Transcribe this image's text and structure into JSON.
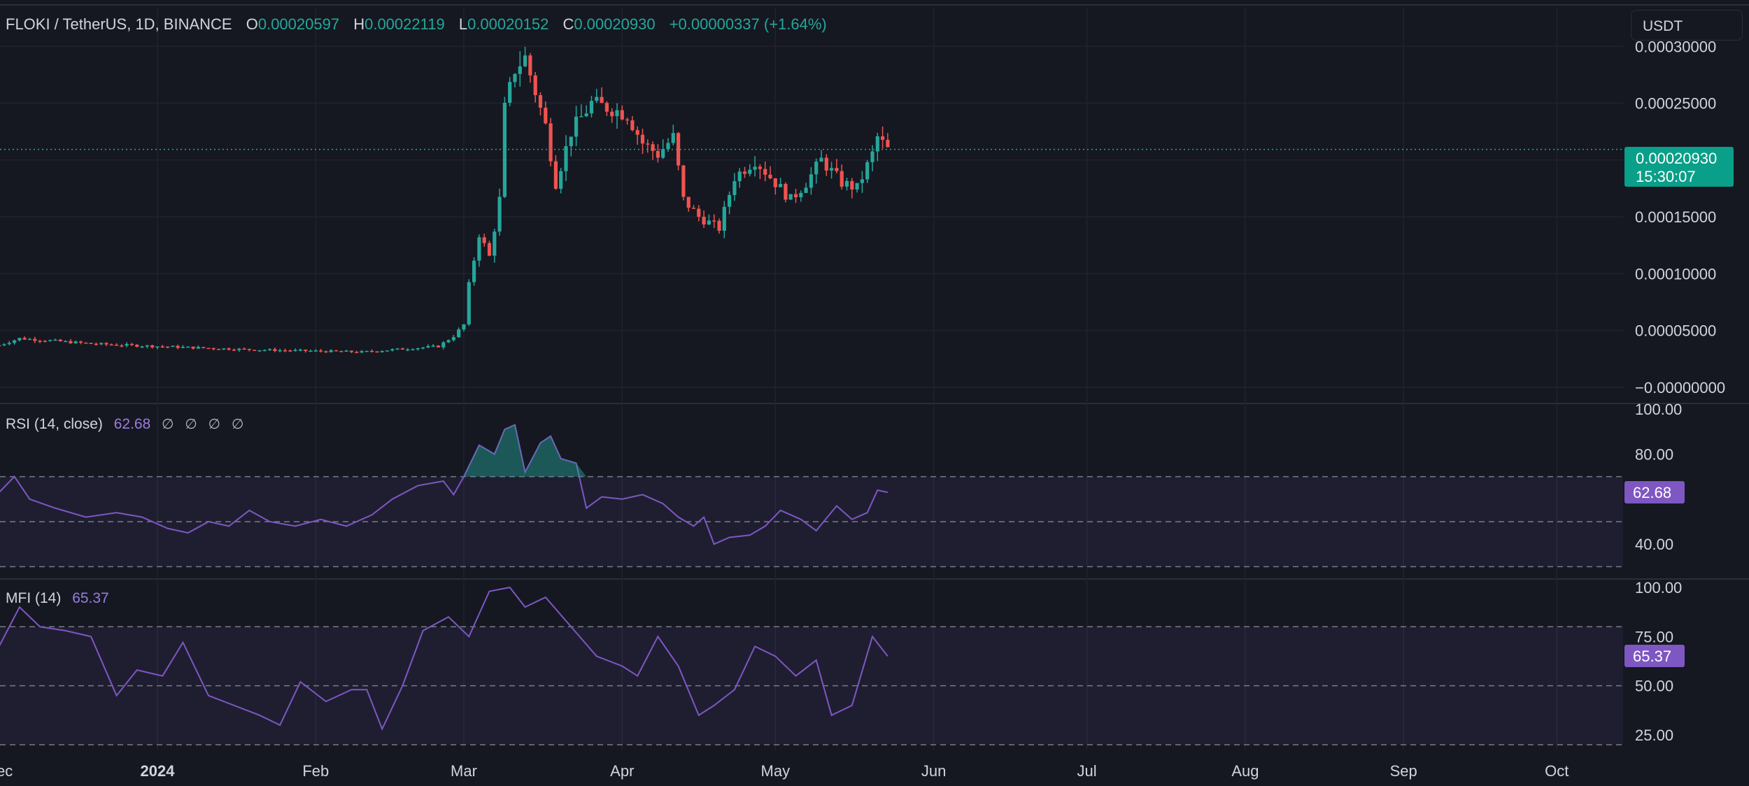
{
  "header": {
    "symbol": "FLOKI / TetherUS, 1D, BINANCE",
    "open_label": "O",
    "open": "0.00020597",
    "high_label": "H",
    "high": "0.00022119",
    "low_label": "L",
    "low": "0.00020152",
    "close_label": "C",
    "close": "0.00020930",
    "change": "+0.00000337 (+1.64%)"
  },
  "currency_selector": "USDT",
  "last_price_badge": {
    "price": "0.00020930",
    "countdown": "15:30:07"
  },
  "colors": {
    "up": "#26a69a",
    "down": "#ef5350",
    "indicator": "#7e57c2",
    "background": "#151821"
  },
  "chart_data": [
    {
      "type": "candlestick",
      "title": "FLOKI / TetherUS, 1D, BINANCE",
      "x_tick_labels": [
        "Dec",
        "2024",
        "Feb",
        "Mar",
        "Apr",
        "May",
        "Jun",
        "Jul",
        "Aug",
        "Sep",
        "Oct"
      ],
      "y_tick_labels": [
        "0.00030000",
        "0.00025000",
        "0.00020000",
        "0.00015000",
        "0.00010000",
        "0.00005000",
        "−0.00000000"
      ],
      "y_range": [
        -1e-05,
        0.00031
      ],
      "ohlc_anchors": [
        {
          "date": "2023-12-01",
          "close": 3.7e-05
        },
        {
          "date": "2023-12-05",
          "close": 4.3e-05
        },
        {
          "date": "2023-12-20",
          "close": 3.8e-05
        },
        {
          "date": "2024-01-01",
          "close": 3.6e-05
        },
        {
          "date": "2024-01-20",
          "close": 3.3e-05
        },
        {
          "date": "2024-02-10",
          "close": 3.1e-05
        },
        {
          "date": "2024-02-25",
          "close": 3.6e-05
        },
        {
          "date": "2024-02-28",
          "close": 4.5e-05
        },
        {
          "date": "2024-03-01",
          "close": 5.5e-05
        },
        {
          "date": "2024-03-02",
          "close": 9e-05
        },
        {
          "date": "2024-03-04",
          "close": 0.000135
        },
        {
          "date": "2024-03-06",
          "close": 0.000115
        },
        {
          "date": "2024-03-08",
          "close": 0.000165
        },
        {
          "date": "2024-03-09",
          "close": 0.000245
        },
        {
          "date": "2024-03-11",
          "close": 0.00028
        },
        {
          "date": "2024-03-13",
          "close": 0.00029
        },
        {
          "date": "2024-03-15",
          "close": 0.00026
        },
        {
          "date": "2024-03-17",
          "close": 0.00023
        },
        {
          "date": "2024-03-19",
          "close": 0.00018
        },
        {
          "date": "2024-03-22",
          "close": 0.000225
        },
        {
          "date": "2024-03-26",
          "close": 0.00025
        },
        {
          "date": "2024-03-30",
          "close": 0.000245
        },
        {
          "date": "2024-04-02",
          "close": 0.00024
        },
        {
          "date": "2024-04-05",
          "close": 0.000215
        },
        {
          "date": "2024-04-08",
          "close": 0.000205
        },
        {
          "date": "2024-04-11",
          "close": 0.00022
        },
        {
          "date": "2024-04-13",
          "close": 0.000165
        },
        {
          "date": "2024-04-16",
          "close": 0.00015
        },
        {
          "date": "2024-04-20",
          "close": 0.00014
        },
        {
          "date": "2024-04-23",
          "close": 0.000185
        },
        {
          "date": "2024-04-27",
          "close": 0.0002
        },
        {
          "date": "2024-05-01",
          "close": 0.00018
        },
        {
          "date": "2024-05-04",
          "close": 0.000165
        },
        {
          "date": "2024-05-07",
          "close": 0.00018
        },
        {
          "date": "2024-05-10",
          "close": 0.0002
        },
        {
          "date": "2024-05-14",
          "close": 0.00018
        },
        {
          "date": "2024-05-17",
          "close": 0.000175
        },
        {
          "date": "2024-05-20",
          "close": 0.000205
        },
        {
          "date": "2024-05-21",
          "close": 0.00022
        },
        {
          "date": "2024-05-23",
          "close": 0.000209
        }
      ]
    },
    {
      "type": "line",
      "title": "RSI (14, close)",
      "current_value": "62.68",
      "label_symbols": [
        "∅",
        "∅",
        "∅",
        "∅"
      ],
      "y_tick_labels": [
        "100.00",
        "80.00",
        "40.00"
      ],
      "y_range": [
        27,
        100
      ],
      "bands": {
        "upper": 70,
        "middle": 50,
        "lower": 30
      },
      "series": [
        {
          "name": "RSI (14, close)",
          "points": [
            {
              "date": "2023-12-01",
              "value": 63
            },
            {
              "date": "2023-12-04",
              "value": 70
            },
            {
              "date": "2023-12-07",
              "value": 60
            },
            {
              "date": "2023-12-12",
              "value": 56
            },
            {
              "date": "2023-12-18",
              "value": 52
            },
            {
              "date": "2023-12-24",
              "value": 54
            },
            {
              "date": "2023-12-29",
              "value": 52
            },
            {
              "date": "2024-01-03",
              "value": 47
            },
            {
              "date": "2024-01-07",
              "value": 45
            },
            {
              "date": "2024-01-11",
              "value": 50
            },
            {
              "date": "2024-01-15",
              "value": 48
            },
            {
              "date": "2024-01-19",
              "value": 55
            },
            {
              "date": "2024-01-23",
              "value": 50
            },
            {
              "date": "2024-01-28",
              "value": 48
            },
            {
              "date": "2024-02-02",
              "value": 51
            },
            {
              "date": "2024-02-07",
              "value": 48
            },
            {
              "date": "2024-02-12",
              "value": 53
            },
            {
              "date": "2024-02-16",
              "value": 60
            },
            {
              "date": "2024-02-21",
              "value": 66
            },
            {
              "date": "2024-02-26",
              "value": 68
            },
            {
              "date": "2024-02-28",
              "value": 62
            },
            {
              "date": "2024-03-01",
              "value": 70
            },
            {
              "date": "2024-03-04",
              "value": 84
            },
            {
              "date": "2024-03-07",
              "value": 80
            },
            {
              "date": "2024-03-09",
              "value": 91
            },
            {
              "date": "2024-03-11",
              "value": 93
            },
            {
              "date": "2024-03-13",
              "value": 72
            },
            {
              "date": "2024-03-16",
              "value": 85
            },
            {
              "date": "2024-03-18",
              "value": 88
            },
            {
              "date": "2024-03-20",
              "value": 78
            },
            {
              "date": "2024-03-23",
              "value": 76
            },
            {
              "date": "2024-03-25",
              "value": 56
            },
            {
              "date": "2024-03-28",
              "value": 61
            },
            {
              "date": "2024-04-01",
              "value": 60
            },
            {
              "date": "2024-04-05",
              "value": 62
            },
            {
              "date": "2024-04-09",
              "value": 58
            },
            {
              "date": "2024-04-12",
              "value": 52
            },
            {
              "date": "2024-04-15",
              "value": 48
            },
            {
              "date": "2024-04-17",
              "value": 52
            },
            {
              "date": "2024-04-19",
              "value": 40
            },
            {
              "date": "2024-04-22",
              "value": 43
            },
            {
              "date": "2024-04-26",
              "value": 44
            },
            {
              "date": "2024-04-29",
              "value": 48
            },
            {
              "date": "2024-05-02",
              "value": 55
            },
            {
              "date": "2024-05-06",
              "value": 51
            },
            {
              "date": "2024-05-09",
              "value": 46
            },
            {
              "date": "2024-05-13",
              "value": 57
            },
            {
              "date": "2024-05-16",
              "value": 51
            },
            {
              "date": "2024-05-19",
              "value": 54
            },
            {
              "date": "2024-05-21",
              "value": 64
            },
            {
              "date": "2024-05-23",
              "value": 63
            }
          ]
        }
      ]
    },
    {
      "type": "line",
      "title": "MFI (14)",
      "current_value": "65.37",
      "y_tick_labels": [
        "100.00",
        "75.00",
        "50.00",
        "25.00"
      ],
      "y_range": [
        20,
        100
      ],
      "bands": {
        "upper": 80,
        "middle": 50,
        "lower": 20
      },
      "series": [
        {
          "name": "MFI (14)",
          "points": [
            {
              "date": "2023-12-01",
              "value": 70
            },
            {
              "date": "2023-12-05",
              "value": 90
            },
            {
              "date": "2023-12-09",
              "value": 80
            },
            {
              "date": "2023-12-14",
              "value": 78
            },
            {
              "date": "2023-12-19",
              "value": 75
            },
            {
              "date": "2023-12-24",
              "value": 45
            },
            {
              "date": "2023-12-28",
              "value": 58
            },
            {
              "date": "2024-01-02",
              "value": 55
            },
            {
              "date": "2024-01-06",
              "value": 72
            },
            {
              "date": "2024-01-11",
              "value": 45
            },
            {
              "date": "2024-01-16",
              "value": 40
            },
            {
              "date": "2024-01-21",
              "value": 35
            },
            {
              "date": "2024-01-25",
              "value": 30
            },
            {
              "date": "2024-01-29",
              "value": 52
            },
            {
              "date": "2024-02-03",
              "value": 42
            },
            {
              "date": "2024-02-08",
              "value": 48
            },
            {
              "date": "2024-02-11",
              "value": 48
            },
            {
              "date": "2024-02-14",
              "value": 28
            },
            {
              "date": "2024-02-18",
              "value": 50
            },
            {
              "date": "2024-02-22",
              "value": 78
            },
            {
              "date": "2024-02-27",
              "value": 85
            },
            {
              "date": "2024-03-02",
              "value": 75
            },
            {
              "date": "2024-03-06",
              "value": 98
            },
            {
              "date": "2024-03-10",
              "value": 100
            },
            {
              "date": "2024-03-13",
              "value": 90
            },
            {
              "date": "2024-03-17",
              "value": 95
            },
            {
              "date": "2024-03-22",
              "value": 80
            },
            {
              "date": "2024-03-27",
              "value": 65
            },
            {
              "date": "2024-04-01",
              "value": 60
            },
            {
              "date": "2024-04-04",
              "value": 55
            },
            {
              "date": "2024-04-08",
              "value": 75
            },
            {
              "date": "2024-04-12",
              "value": 60
            },
            {
              "date": "2024-04-16",
              "value": 35
            },
            {
              "date": "2024-04-19",
              "value": 40
            },
            {
              "date": "2024-04-23",
              "value": 48
            },
            {
              "date": "2024-04-27",
              "value": 70
            },
            {
              "date": "2024-05-01",
              "value": 65
            },
            {
              "date": "2024-05-05",
              "value": 55
            },
            {
              "date": "2024-05-09",
              "value": 63
            },
            {
              "date": "2024-05-12",
              "value": 35
            },
            {
              "date": "2024-05-16",
              "value": 40
            },
            {
              "date": "2024-05-20",
              "value": 75
            },
            {
              "date": "2024-05-23",
              "value": 65
            }
          ]
        }
      ]
    }
  ]
}
